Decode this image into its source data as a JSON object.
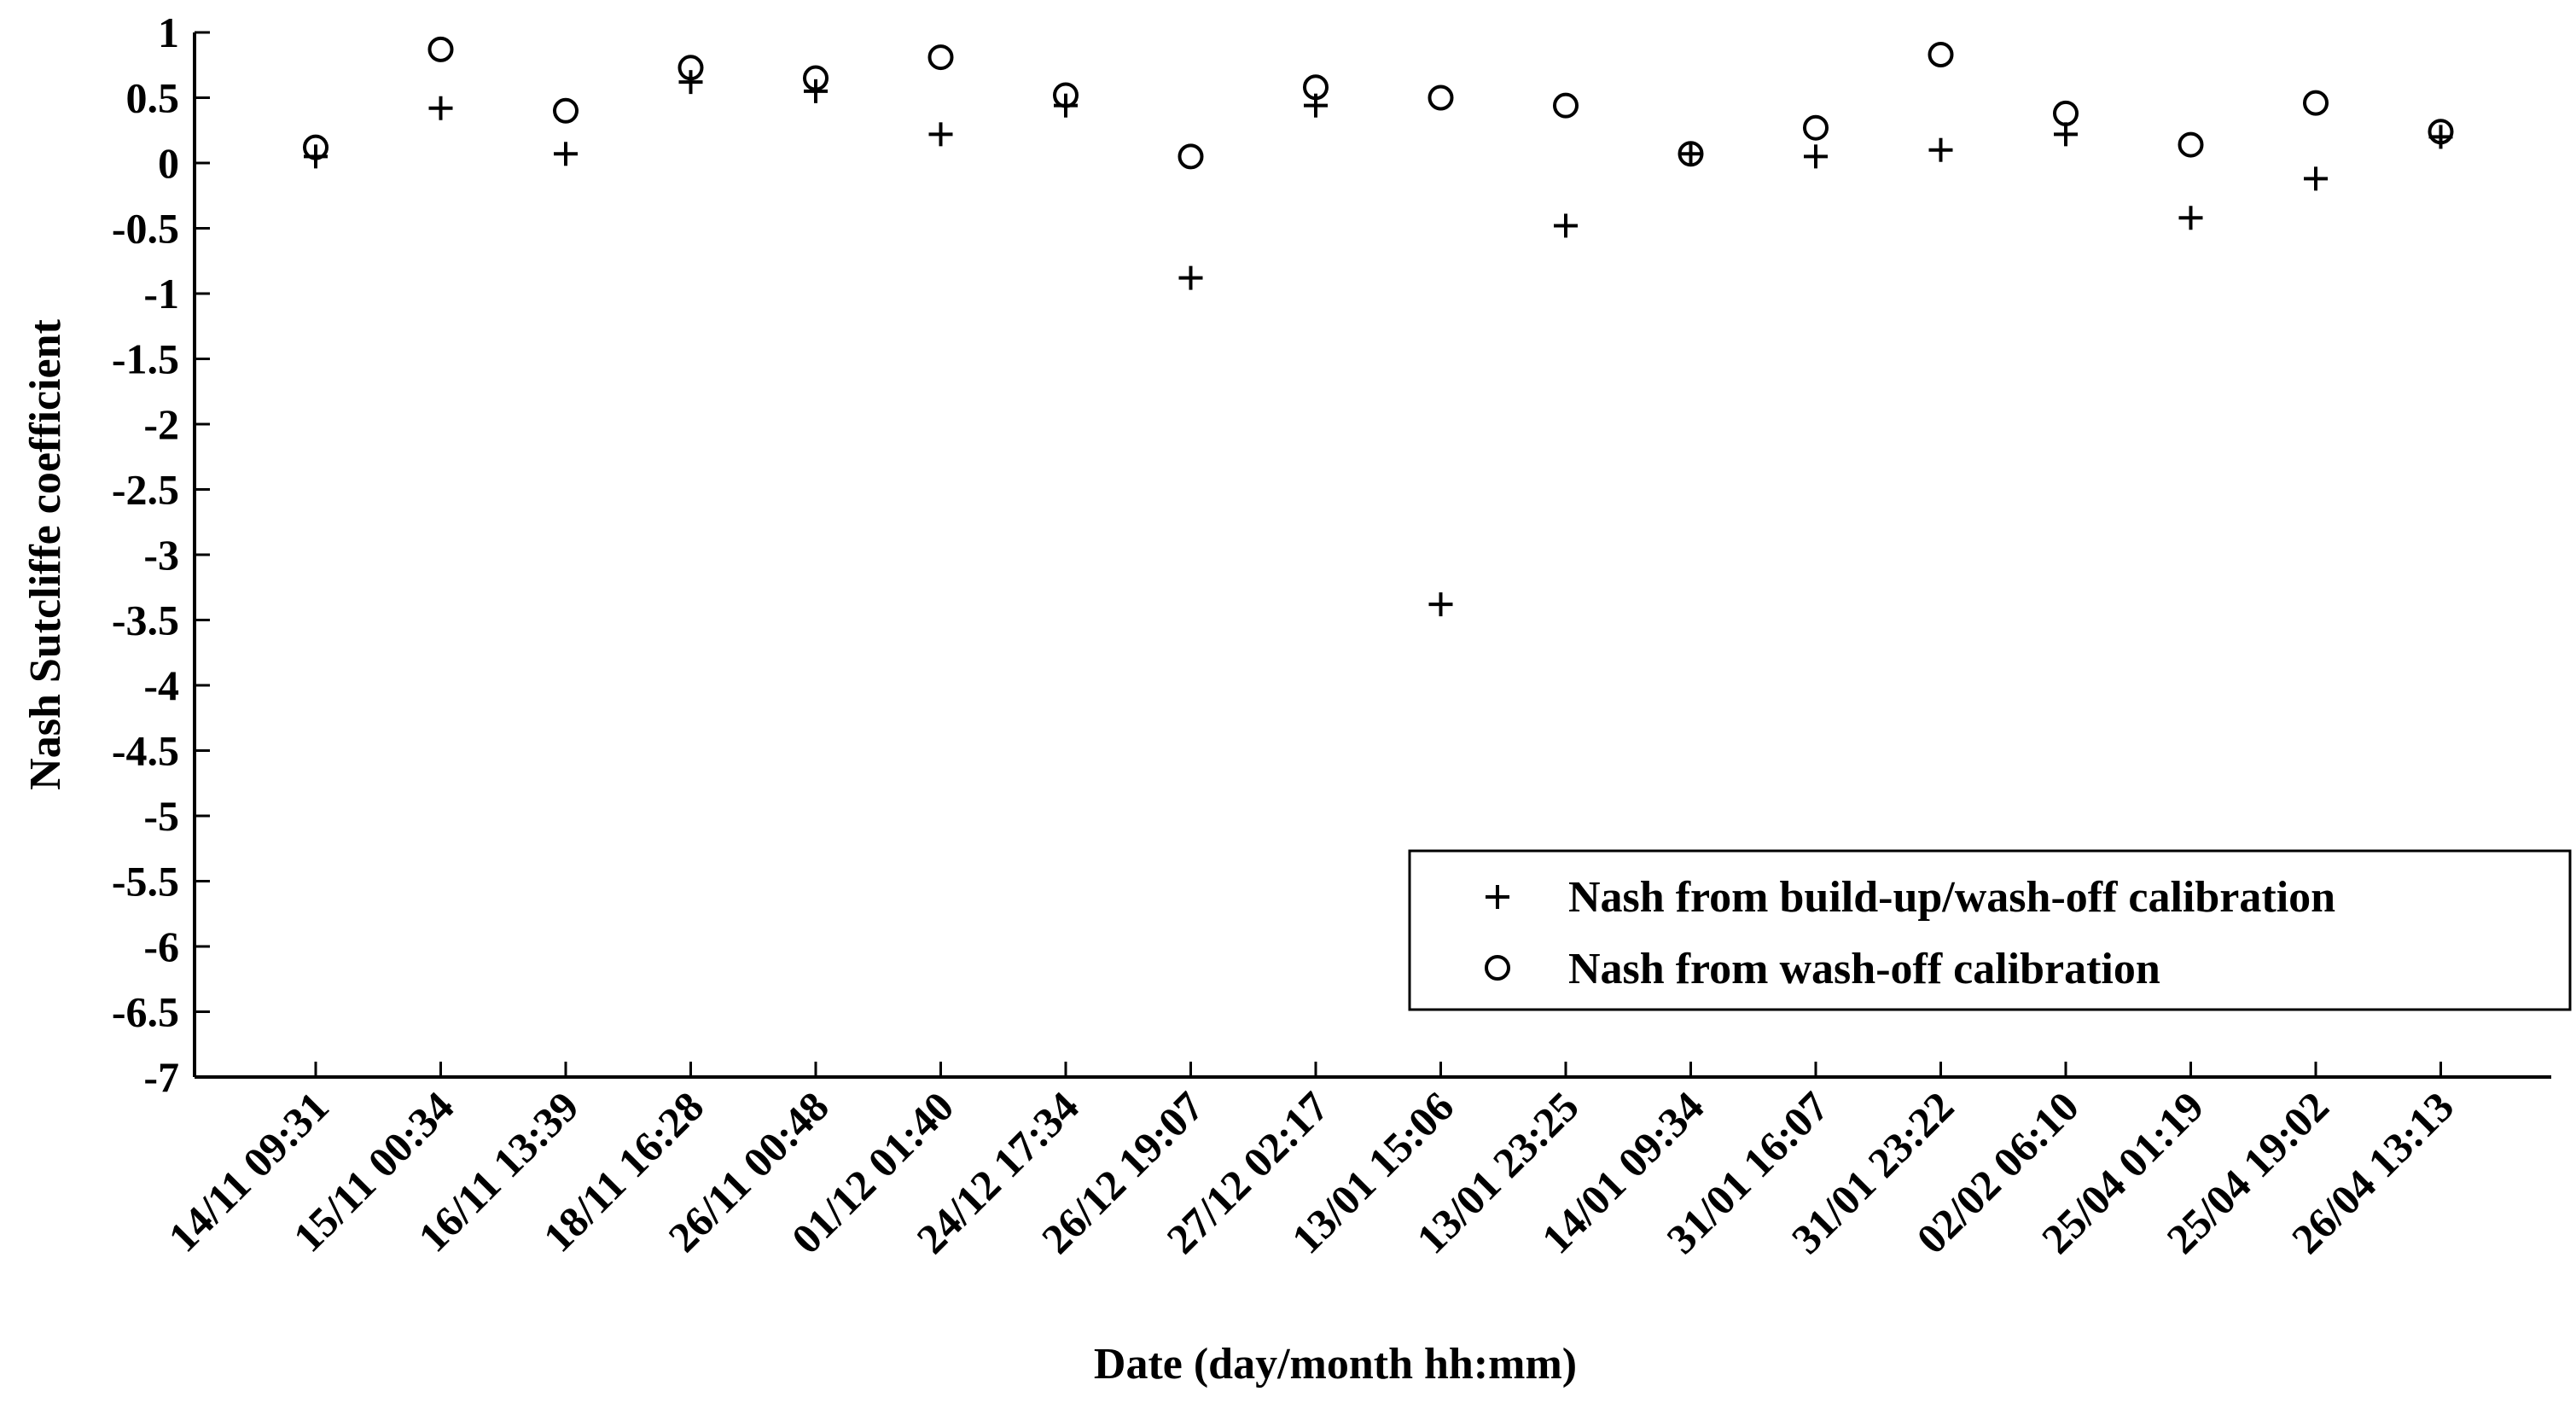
{
  "chart_data": {
    "type": "scatter",
    "title": "",
    "xlabel": "Date (day/month hh:mm)",
    "ylabel": "Nash Sutcliffe coefficient",
    "ylim": [
      -7,
      1
    ],
    "yticks": [
      1,
      0.5,
      0,
      -0.5,
      -1,
      -1.5,
      -2,
      -2.5,
      -3,
      -3.5,
      -4,
      -4.5,
      -5,
      -5.5,
      -6,
      -6.5,
      -7
    ],
    "categories": [
      "14/11 09:31",
      "15/11 00:34",
      "16/11 13:39",
      "18/11 16:28",
      "26/11 00:48",
      "01/12 01:40",
      "24/12 17:34",
      "26/12 19:07",
      "27/12 02:17",
      "13/01 15:06",
      "13/01 23:25",
      "14/01 09:34",
      "31/01 16:07",
      "31/01 23:22",
      "02/02 06:10",
      "25/04 01:19",
      "25/04 19:02",
      "26/04 13:13"
    ],
    "grid": false,
    "legend_position": "bottom-right",
    "series": [
      {
        "name": "Nash from build-up/wash-off calibration",
        "marker": "plus",
        "color": "#000000",
        "values": [
          0.05,
          0.42,
          0.07,
          0.62,
          0.55,
          0.22,
          0.44,
          -0.88,
          0.44,
          -3.38,
          -0.48,
          0.07,
          0.05,
          0.1,
          0.22,
          -0.42,
          -0.12,
          0.2
        ]
      },
      {
        "name": "Nash from wash-off calibration",
        "marker": "circle",
        "color": "#000000",
        "values": [
          0.12,
          0.87,
          0.4,
          0.73,
          0.65,
          0.81,
          0.52,
          0.05,
          0.58,
          0.5,
          0.44,
          0.07,
          0.27,
          0.83,
          0.38,
          0.14,
          0.46,
          0.24
        ]
      }
    ]
  }
}
